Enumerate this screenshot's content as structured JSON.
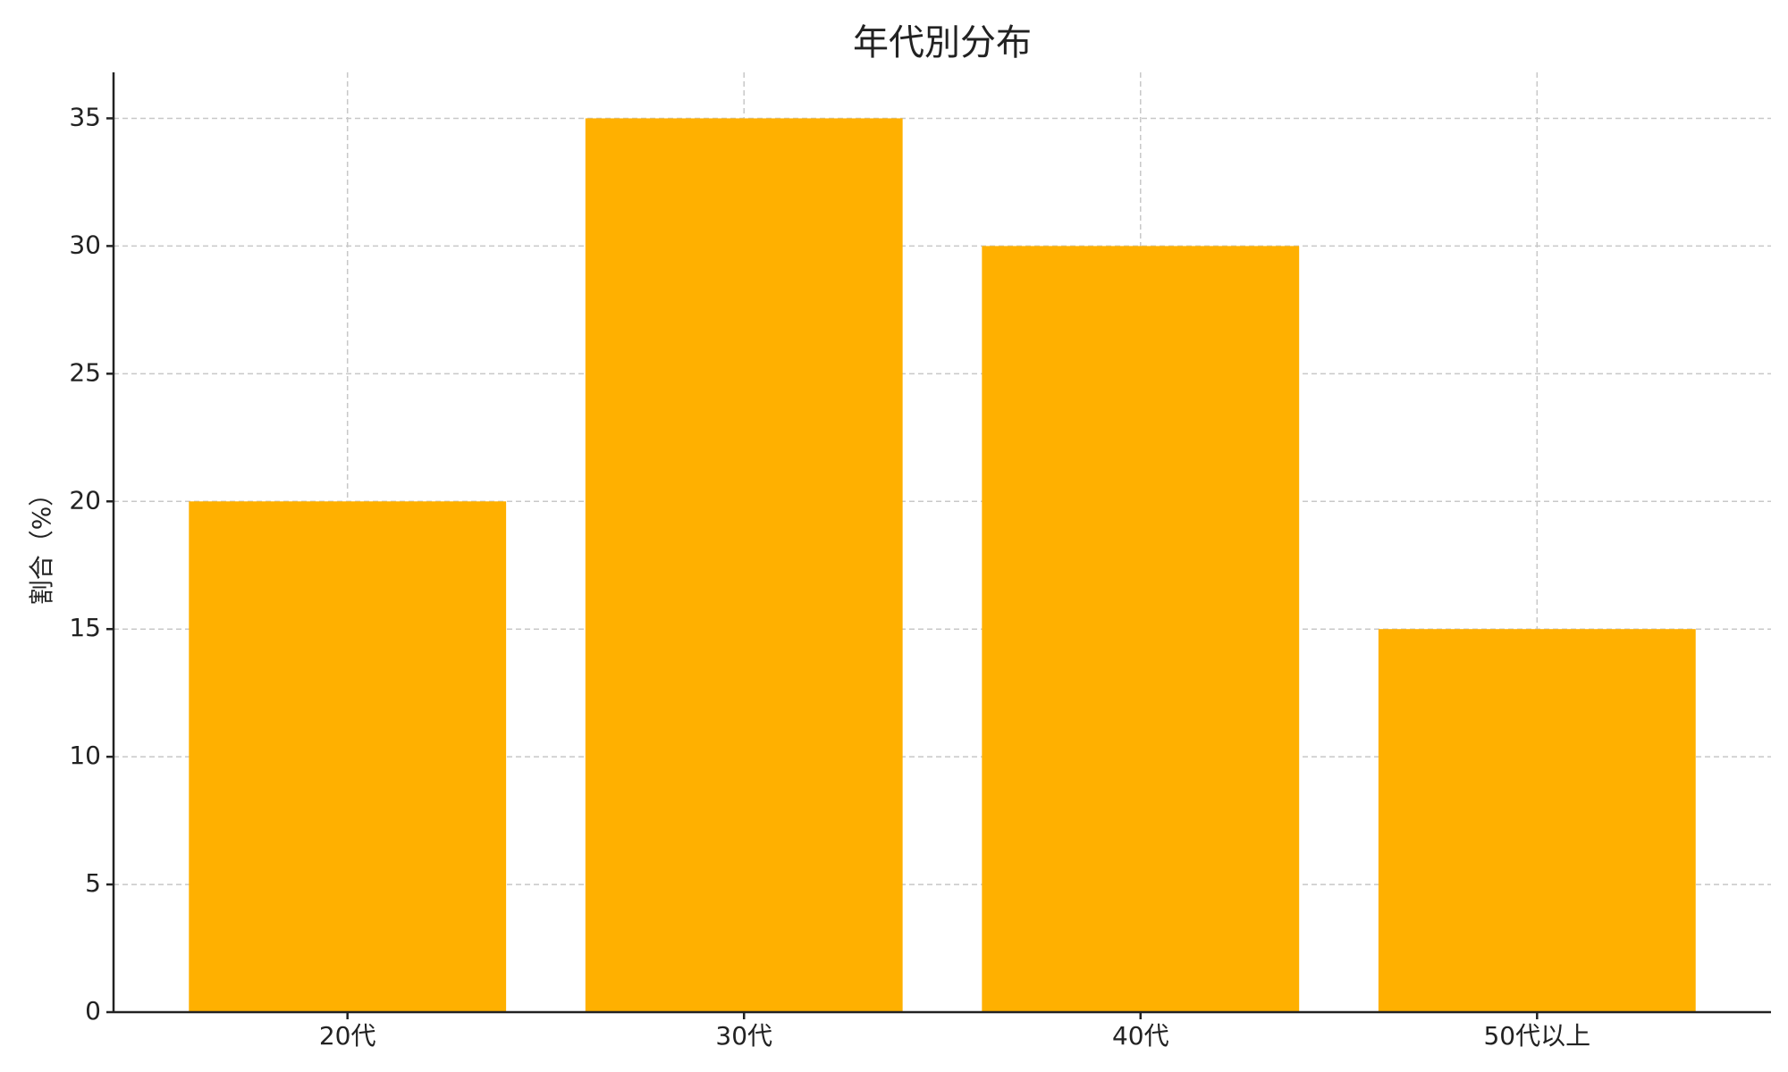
{
  "chart_data": {
    "type": "bar",
    "title": "年代別分布",
    "y_label": "割合（%）",
    "categories": [
      "20代",
      "30代",
      "40代",
      "50代以上"
    ],
    "values": [
      20,
      35,
      30,
      15
    ],
    "color": "#ffb000",
    "ylim": [
      0,
      36.8
    ],
    "yticks": [
      0,
      5,
      10,
      15,
      20,
      25,
      30,
      35
    ],
    "grid": true
  }
}
